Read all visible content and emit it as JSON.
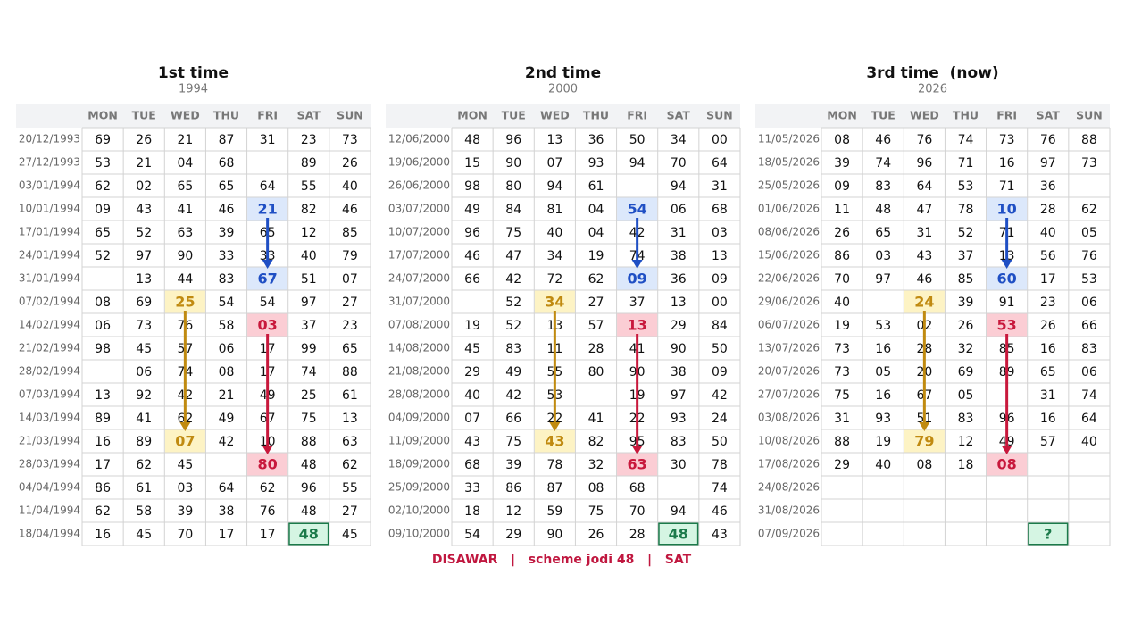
{
  "days": [
    "MON",
    "TUE",
    "WED",
    "THU",
    "FRI",
    "SAT",
    "SUN"
  ],
  "tables": [
    {
      "title": "1st time",
      "subtitle": "1994",
      "rows": [
        {
          "date": "20/12/1993",
          "cells": [
            "69",
            "26",
            "21",
            "87",
            "31",
            "23",
            "73"
          ]
        },
        {
          "date": "27/12/1993",
          "cells": [
            "53",
            "21",
            "04",
            "68",
            null,
            "89",
            "26"
          ]
        },
        {
          "date": "03/01/1994",
          "cells": [
            "62",
            "02",
            "65",
            "65",
            "64",
            "55",
            "40"
          ]
        },
        {
          "date": "10/01/1994",
          "cells": [
            "09",
            "43",
            "41",
            "46",
            "21",
            "82",
            "46"
          ]
        },
        {
          "date": "17/01/1994",
          "cells": [
            "65",
            "52",
            "63",
            "39",
            "65",
            "12",
            "85"
          ]
        },
        {
          "date": "24/01/1994",
          "cells": [
            "52",
            "97",
            "90",
            "33",
            "33",
            "40",
            "79"
          ]
        },
        {
          "date": "31/01/1994",
          "cells": [
            null,
            "13",
            "44",
            "83",
            "67",
            "51",
            "07"
          ]
        },
        {
          "date": "07/02/1994",
          "cells": [
            "08",
            "69",
            "25",
            "54",
            "54",
            "97",
            "27"
          ]
        },
        {
          "date": "14/02/1994",
          "cells": [
            "06",
            "73",
            "76",
            "58",
            "03",
            "37",
            "23"
          ]
        },
        {
          "date": "21/02/1994",
          "cells": [
            "98",
            "45",
            "57",
            "06",
            "17",
            "99",
            "65"
          ]
        },
        {
          "date": "28/02/1994",
          "cells": [
            null,
            "06",
            "74",
            "08",
            "17",
            "74",
            "88"
          ]
        },
        {
          "date": "07/03/1994",
          "cells": [
            "13",
            "92",
            "42",
            "21",
            "49",
            "25",
            "61"
          ]
        },
        {
          "date": "14/03/1994",
          "cells": [
            "89",
            "41",
            "62",
            "49",
            "67",
            "75",
            "13"
          ]
        },
        {
          "date": "21/03/1994",
          "cells": [
            "16",
            "89",
            "07",
            "42",
            "10",
            "88",
            "63"
          ]
        },
        {
          "date": "28/03/1994",
          "cells": [
            "17",
            "62",
            "45",
            null,
            "80",
            "48",
            "62"
          ]
        },
        {
          "date": "04/04/1994",
          "cells": [
            "86",
            "61",
            "03",
            "64",
            "62",
            "96",
            "55"
          ]
        },
        {
          "date": "11/04/1994",
          "cells": [
            "62",
            "58",
            "39",
            "38",
            "76",
            "48",
            "27"
          ]
        },
        {
          "date": "18/04/1994",
          "cells": [
            "16",
            "45",
            "70",
            "17",
            "17",
            "48",
            "45"
          ]
        }
      ]
    },
    {
      "title": "2nd time",
      "subtitle": "2000",
      "rows": [
        {
          "date": "12/06/2000",
          "cells": [
            "48",
            "96",
            "13",
            "36",
            "50",
            "34",
            "00"
          ]
        },
        {
          "date": "19/06/2000",
          "cells": [
            "15",
            "90",
            "07",
            "93",
            "94",
            "70",
            "64"
          ]
        },
        {
          "date": "26/06/2000",
          "cells": [
            "98",
            "80",
            "94",
            "61",
            null,
            "94",
            "31"
          ]
        },
        {
          "date": "03/07/2000",
          "cells": [
            "49",
            "84",
            "81",
            "04",
            "54",
            "06",
            "68"
          ]
        },
        {
          "date": "10/07/2000",
          "cells": [
            "96",
            "75",
            "40",
            "04",
            "42",
            "31",
            "03"
          ]
        },
        {
          "date": "17/07/2000",
          "cells": [
            "46",
            "47",
            "34",
            "19",
            "74",
            "38",
            "13"
          ]
        },
        {
          "date": "24/07/2000",
          "cells": [
            "66",
            "42",
            "72",
            "62",
            "09",
            "36",
            "09"
          ]
        },
        {
          "date": "31/07/2000",
          "cells": [
            null,
            "52",
            "34",
            "27",
            "37",
            "13",
            "00"
          ]
        },
        {
          "date": "07/08/2000",
          "cells": [
            "19",
            "52",
            "13",
            "57",
            "13",
            "29",
            "84"
          ]
        },
        {
          "date": "14/08/2000",
          "cells": [
            "45",
            "83",
            "11",
            "28",
            "41",
            "90",
            "50"
          ]
        },
        {
          "date": "21/08/2000",
          "cells": [
            "29",
            "49",
            "55",
            "80",
            "90",
            "38",
            "09"
          ]
        },
        {
          "date": "28/08/2000",
          "cells": [
            "40",
            "42",
            "53",
            null,
            "19",
            "97",
            "42"
          ]
        },
        {
          "date": "04/09/2000",
          "cells": [
            "07",
            "66",
            "22",
            "41",
            "22",
            "93",
            "24"
          ]
        },
        {
          "date": "11/09/2000",
          "cells": [
            "43",
            "75",
            "43",
            "82",
            "95",
            "83",
            "50"
          ]
        },
        {
          "date": "18/09/2000",
          "cells": [
            "68",
            "39",
            "78",
            "32",
            "63",
            "30",
            "78"
          ]
        },
        {
          "date": "25/09/2000",
          "cells": [
            "33",
            "86",
            "87",
            "08",
            "68",
            null,
            "74"
          ]
        },
        {
          "date": "02/10/2000",
          "cells": [
            "18",
            "12",
            "59",
            "75",
            "70",
            "94",
            "46"
          ]
        },
        {
          "date": "09/10/2000",
          "cells": [
            "54",
            "29",
            "90",
            "26",
            "28",
            "48",
            "43"
          ]
        }
      ]
    },
    {
      "title": "3rd time  (now)",
      "subtitle": "2026",
      "rows": [
        {
          "date": "11/05/2026",
          "cells": [
            "08",
            "46",
            "76",
            "74",
            "73",
            "76",
            "88"
          ]
        },
        {
          "date": "18/05/2026",
          "cells": [
            "39",
            "74",
            "96",
            "71",
            "16",
            "97",
            "73"
          ]
        },
        {
          "date": "25/05/2026",
          "cells": [
            "09",
            "83",
            "64",
            "53",
            "71",
            "36",
            null
          ]
        },
        {
          "date": "01/06/2026",
          "cells": [
            "11",
            "48",
            "47",
            "78",
            "10",
            "28",
            "62"
          ]
        },
        {
          "date": "08/06/2026",
          "cells": [
            "26",
            "65",
            "31",
            "52",
            "71",
            "40",
            "05"
          ]
        },
        {
          "date": "15/06/2026",
          "cells": [
            "86",
            "03",
            "43",
            "37",
            "13",
            "56",
            "76"
          ]
        },
        {
          "date": "22/06/2026",
          "cells": [
            "70",
            "97",
            "46",
            "85",
            "60",
            "17",
            "53"
          ]
        },
        {
          "date": "29/06/2026",
          "cells": [
            "40",
            null,
            "24",
            "39",
            "91",
            "23",
            "06"
          ]
        },
        {
          "date": "06/07/2026",
          "cells": [
            "19",
            "53",
            "02",
            "26",
            "53",
            "26",
            "66"
          ]
        },
        {
          "date": "13/07/2026",
          "cells": [
            "73",
            "16",
            "28",
            "32",
            "85",
            "16",
            "83"
          ]
        },
        {
          "date": "20/07/2026",
          "cells": [
            "73",
            "05",
            "20",
            "69",
            "89",
            "65",
            "06"
          ]
        },
        {
          "date": "27/07/2026",
          "cells": [
            "75",
            "16",
            "67",
            "05",
            null,
            "31",
            "74"
          ]
        },
        {
          "date": "03/08/2026",
          "cells": [
            "31",
            "93",
            "51",
            "83",
            "96",
            "16",
            "64"
          ]
        },
        {
          "date": "10/08/2026",
          "cells": [
            "88",
            "19",
            "79",
            "12",
            "49",
            "57",
            "40"
          ]
        },
        {
          "date": "17/08/2026",
          "cells": [
            "29",
            "40",
            "08",
            "18",
            "08",
            null,
            null
          ]
        },
        {
          "date": "24/08/2026",
          "cells": [
            null,
            null,
            null,
            null,
            null,
            null,
            null
          ]
        },
        {
          "date": "31/08/2026",
          "cells": [
            null,
            null,
            null,
            null,
            null,
            null,
            null
          ]
        },
        {
          "date": "07/09/2026",
          "cells": [
            null,
            null,
            null,
            null,
            null,
            "?",
            null
          ]
        }
      ]
    }
  ],
  "footer": "DISAWAR   |   scheme jodi 48   |   SAT"
}
